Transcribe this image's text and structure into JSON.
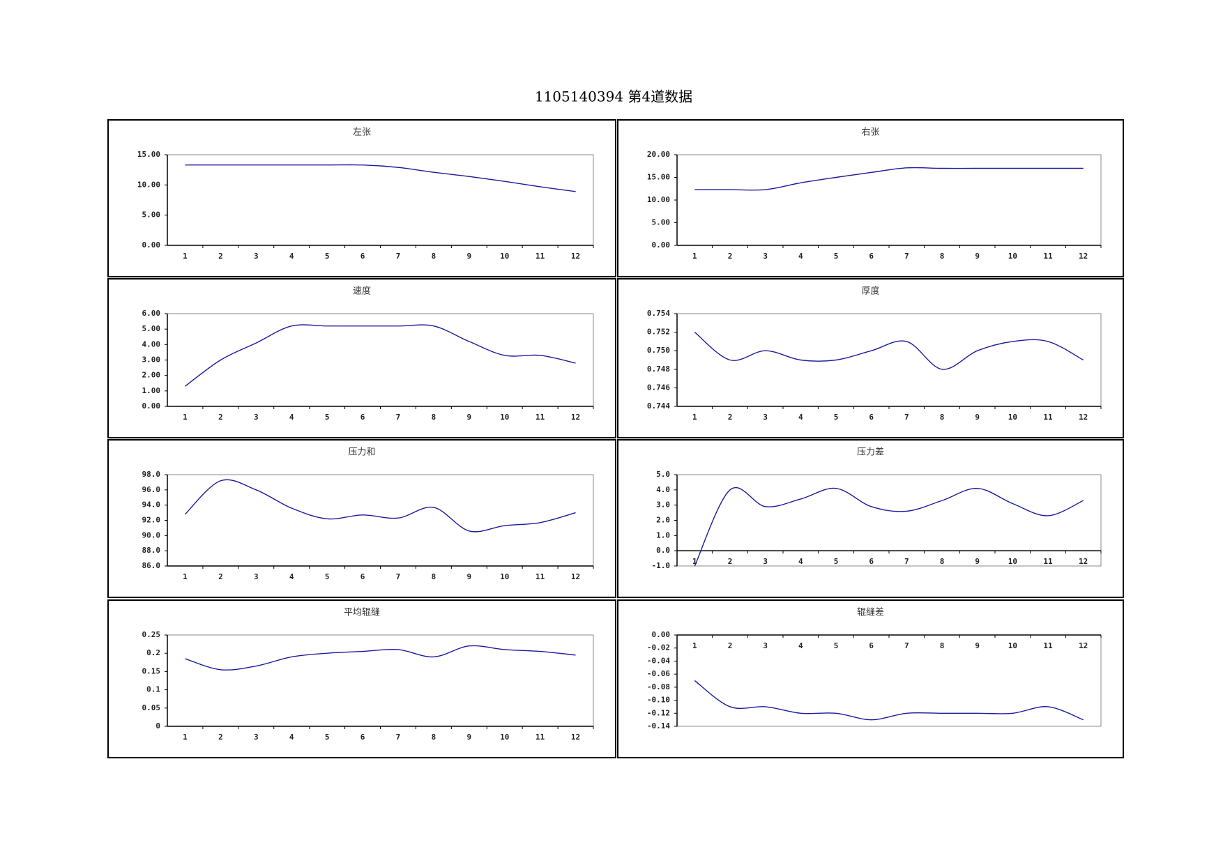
{
  "title": "1105140394 第4道数据",
  "chart_data": [
    {
      "type": "line",
      "title": "左张",
      "categories": [
        "1",
        "2",
        "3",
        "4",
        "5",
        "6",
        "7",
        "8",
        "9",
        "10",
        "11",
        "12"
      ],
      "values": [
        13.3,
        13.3,
        13.3,
        13.3,
        13.3,
        13.3,
        12.9,
        12.1,
        11.4,
        10.6,
        9.7,
        8.9
      ],
      "color": "#1a1a9c",
      "ylim": [
        0,
        15
      ],
      "yticks": [
        {
          "value": 0,
          "label": "0.00"
        },
        {
          "value": 5,
          "label": "5.00"
        },
        {
          "value": 10,
          "label": "10.00"
        },
        {
          "value": 15,
          "label": "15.00"
        }
      ]
    },
    {
      "type": "line",
      "title": "右张",
      "categories": [
        "1",
        "2",
        "3",
        "4",
        "5",
        "6",
        "7",
        "8",
        "9",
        "10",
        "11",
        "12"
      ],
      "values": [
        12.3,
        12.3,
        12.3,
        13.8,
        15.0,
        16.1,
        17.1,
        17.0,
        17.0,
        17.0,
        17.0,
        17.0
      ],
      "color": "#1a1a9c",
      "ylim": [
        0,
        20
      ],
      "yticks": [
        {
          "value": 0,
          "label": "0.00"
        },
        {
          "value": 5,
          "label": "5.00"
        },
        {
          "value": 10,
          "label": "10.00"
        },
        {
          "value": 15,
          "label": "15.00"
        },
        {
          "value": 20,
          "label": "20.00"
        }
      ]
    },
    {
      "type": "line",
      "title": "速度",
      "categories": [
        "1",
        "2",
        "3",
        "4",
        "5",
        "6",
        "7",
        "8",
        "9",
        "10",
        "11",
        "12"
      ],
      "values": [
        1.3,
        3.0,
        4.1,
        5.2,
        5.2,
        5.2,
        5.2,
        5.2,
        4.2,
        3.3,
        3.3,
        2.8
      ],
      "color": "#1a1a9c",
      "ylim": [
        0,
        6
      ],
      "yticks": [
        {
          "value": 0,
          "label": "0.00"
        },
        {
          "value": 1,
          "label": "1.00"
        },
        {
          "value": 2,
          "label": "2.00"
        },
        {
          "value": 3,
          "label": "3.00"
        },
        {
          "value": 4,
          "label": "4.00"
        },
        {
          "value": 5,
          "label": "5.00"
        },
        {
          "value": 6,
          "label": "6.00"
        }
      ]
    },
    {
      "type": "line",
      "title": "厚度",
      "categories": [
        "1",
        "2",
        "3",
        "4",
        "5",
        "6",
        "7",
        "8",
        "9",
        "10",
        "11",
        "12"
      ],
      "values": [
        0.752,
        0.749,
        0.75,
        0.749,
        0.749,
        0.75,
        0.751,
        0.748,
        0.75,
        0.751,
        0.751,
        0.749
      ],
      "color": "#1a1a9c",
      "ylim": [
        0.744,
        0.754
      ],
      "yticks": [
        0.744,
        0.746,
        0.748,
        {
          "value": 0.75,
          "label": "0.750"
        },
        0.752,
        0.754
      ]
    },
    {
      "type": "line",
      "title": "压力和",
      "categories": [
        "1",
        "2",
        "3",
        "4",
        "5",
        "6",
        "7",
        "8",
        "9",
        "10",
        "11",
        "12"
      ],
      "values": [
        92.8,
        97.2,
        96.0,
        93.6,
        92.2,
        92.7,
        92.3,
        93.7,
        90.6,
        91.3,
        91.7,
        93.0
      ],
      "color": "#1a1a9c",
      "ylim": [
        86,
        98
      ],
      "yticks": [
        {
          "value": 86,
          "label": "86.0"
        },
        {
          "value": 88,
          "label": "88.0"
        },
        {
          "value": 90,
          "label": "90.0"
        },
        {
          "value": 92,
          "label": "92.0"
        },
        {
          "value": 94,
          "label": "94.0"
        },
        {
          "value": 96,
          "label": "96.0"
        },
        {
          "value": 98,
          "label": "98.0"
        }
      ]
    },
    {
      "type": "line",
      "title": "压力差",
      "categories": [
        "1",
        "2",
        "3",
        "4",
        "5",
        "6",
        "7",
        "8",
        "9",
        "10",
        "11",
        "12"
      ],
      "values": [
        -1.0,
        4.0,
        2.9,
        3.4,
        4.1,
        2.9,
        2.6,
        3.3,
        4.1,
        3.1,
        2.3,
        3.3
      ],
      "color": "#1a1a9c",
      "ylim": [
        -1,
        5
      ],
      "yticks": [
        {
          "value": -1,
          "label": "-1.0"
        },
        {
          "value": 0,
          "label": "0.0"
        },
        {
          "value": 1,
          "label": "1.0"
        },
        {
          "value": 2,
          "label": "2.0"
        },
        {
          "value": 3,
          "label": "3.0"
        },
        {
          "value": 4,
          "label": "4.0"
        },
        {
          "value": 5,
          "label": "5.0"
        }
      ]
    },
    {
      "type": "line",
      "title": "平均辊缝",
      "categories": [
        "1",
        "2",
        "3",
        "4",
        "5",
        "6",
        "7",
        "8",
        "9",
        "10",
        "11",
        "12"
      ],
      "values": [
        0.185,
        0.155,
        0.165,
        0.19,
        0.2,
        0.205,
        0.21,
        0.19,
        0.22,
        0.21,
        0.205,
        0.195
      ],
      "color": "#1a1a9c",
      "ylim": [
        0,
        0.25
      ],
      "yticks": [
        0,
        0.05,
        0.1,
        0.15,
        0.2,
        0.25
      ]
    },
    {
      "type": "line",
      "title": "辊缝差",
      "categories": [
        "1",
        "2",
        "3",
        "4",
        "5",
        "6",
        "7",
        "8",
        "9",
        "10",
        "11",
        "12"
      ],
      "values": [
        -0.07,
        -0.11,
        -0.11,
        -0.12,
        -0.12,
        -0.13,
        -0.12,
        -0.12,
        -0.12,
        -0.12,
        -0.11,
        -0.13
      ],
      "color": "#1a1a9c",
      "ylim": [
        -0.14,
        0
      ],
      "yticks": [
        {
          "value": -0.14,
          "label": "-0.14"
        },
        {
          "value": -0.12,
          "label": "-0.12"
        },
        {
          "value": -0.1,
          "label": "-0.10"
        },
        {
          "value": -0.08,
          "label": "-0.08"
        },
        {
          "value": -0.06,
          "label": "-0.06"
        },
        {
          "value": -0.04,
          "label": "-0.04"
        },
        {
          "value": -0.02,
          "label": "-0.02"
        },
        {
          "value": 0,
          "label": "0.00"
        }
      ]
    }
  ]
}
